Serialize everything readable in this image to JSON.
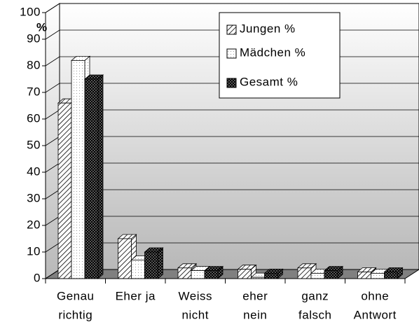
{
  "chart_data": {
    "type": "bar3d",
    "y_label": "%",
    "categories": [
      [
        "Genau",
        "richtig"
      ],
      [
        "Eher ja"
      ],
      [
        "Weiss",
        "nicht"
      ],
      [
        "eher",
        "nein"
      ],
      [
        "ganz",
        "falsch"
      ],
      [
        "ohne",
        "Antwort"
      ]
    ],
    "series": [
      {
        "name": "Jungen %",
        "color": "#ffffff",
        "values": [
          66,
          15,
          4,
          3.5,
          4,
          2.5
        ]
      },
      {
        "name": "Mädchen %",
        "color": "#ffffff",
        "values": [
          82,
          7,
          3,
          0.5,
          2,
          2
        ]
      },
      {
        "name": "Gesamt %",
        "color": "#000000",
        "values": [
          75,
          10,
          3,
          2,
          3,
          2.5
        ]
      }
    ],
    "ylim": [
      0,
      100
    ],
    "yticks": [
      0,
      10,
      20,
      30,
      40,
      50,
      60,
      70,
      80,
      90,
      100
    ],
    "grid": true,
    "legend": "top-right"
  }
}
